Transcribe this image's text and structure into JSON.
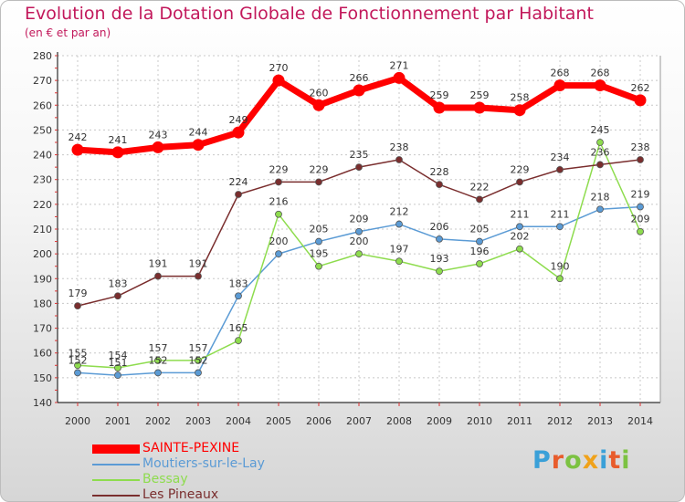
{
  "title": "Evolution de la Dotation Globale de Fonctionnement par Habitant",
  "subtitle": "(en € et par an)",
  "logo": "Proxiti",
  "chart_data": {
    "type": "line",
    "title": "Evolution de la Dotation Globale de Fonctionnement par Habitant",
    "subtitle": "(en € et par an)",
    "xlabel": "",
    "ylabel": "",
    "ylim": [
      140,
      280
    ],
    "yticks": [
      140,
      150,
      160,
      170,
      180,
      190,
      200,
      210,
      220,
      230,
      240,
      250,
      260,
      270,
      280
    ],
    "grid": true,
    "legend": "bottom-left",
    "categories": [
      "2000",
      "2001",
      "2002",
      "2003",
      "2004",
      "2005",
      "2006",
      "2007",
      "2008",
      "2009",
      "2010",
      "2011",
      "2012",
      "2013",
      "2014"
    ],
    "series": [
      {
        "name": "SAINTE-PEXINE",
        "color": "#ff0000",
        "values": [
          242,
          241,
          243,
          244,
          249,
          270,
          260,
          266,
          271,
          259,
          259,
          258,
          268,
          268,
          262
        ]
      },
      {
        "name": "Moutiers-sur-le-Lay",
        "color": "#5b9bd5",
        "values": [
          152,
          151,
          152,
          152,
          183,
          200,
          205,
          209,
          212,
          206,
          205,
          211,
          211,
          218,
          219
        ]
      },
      {
        "name": "Bessay",
        "color": "#8edc4e",
        "values": [
          155,
          154,
          157,
          157,
          165,
          216,
          195,
          200,
          197,
          193,
          196,
          202,
          190,
          245,
          209
        ]
      },
      {
        "name": "Les Pineaux",
        "color": "#7a2e2e",
        "values": [
          179,
          183,
          191,
          191,
          224,
          229,
          229,
          235,
          238,
          228,
          222,
          229,
          234,
          236,
          238
        ]
      }
    ]
  }
}
